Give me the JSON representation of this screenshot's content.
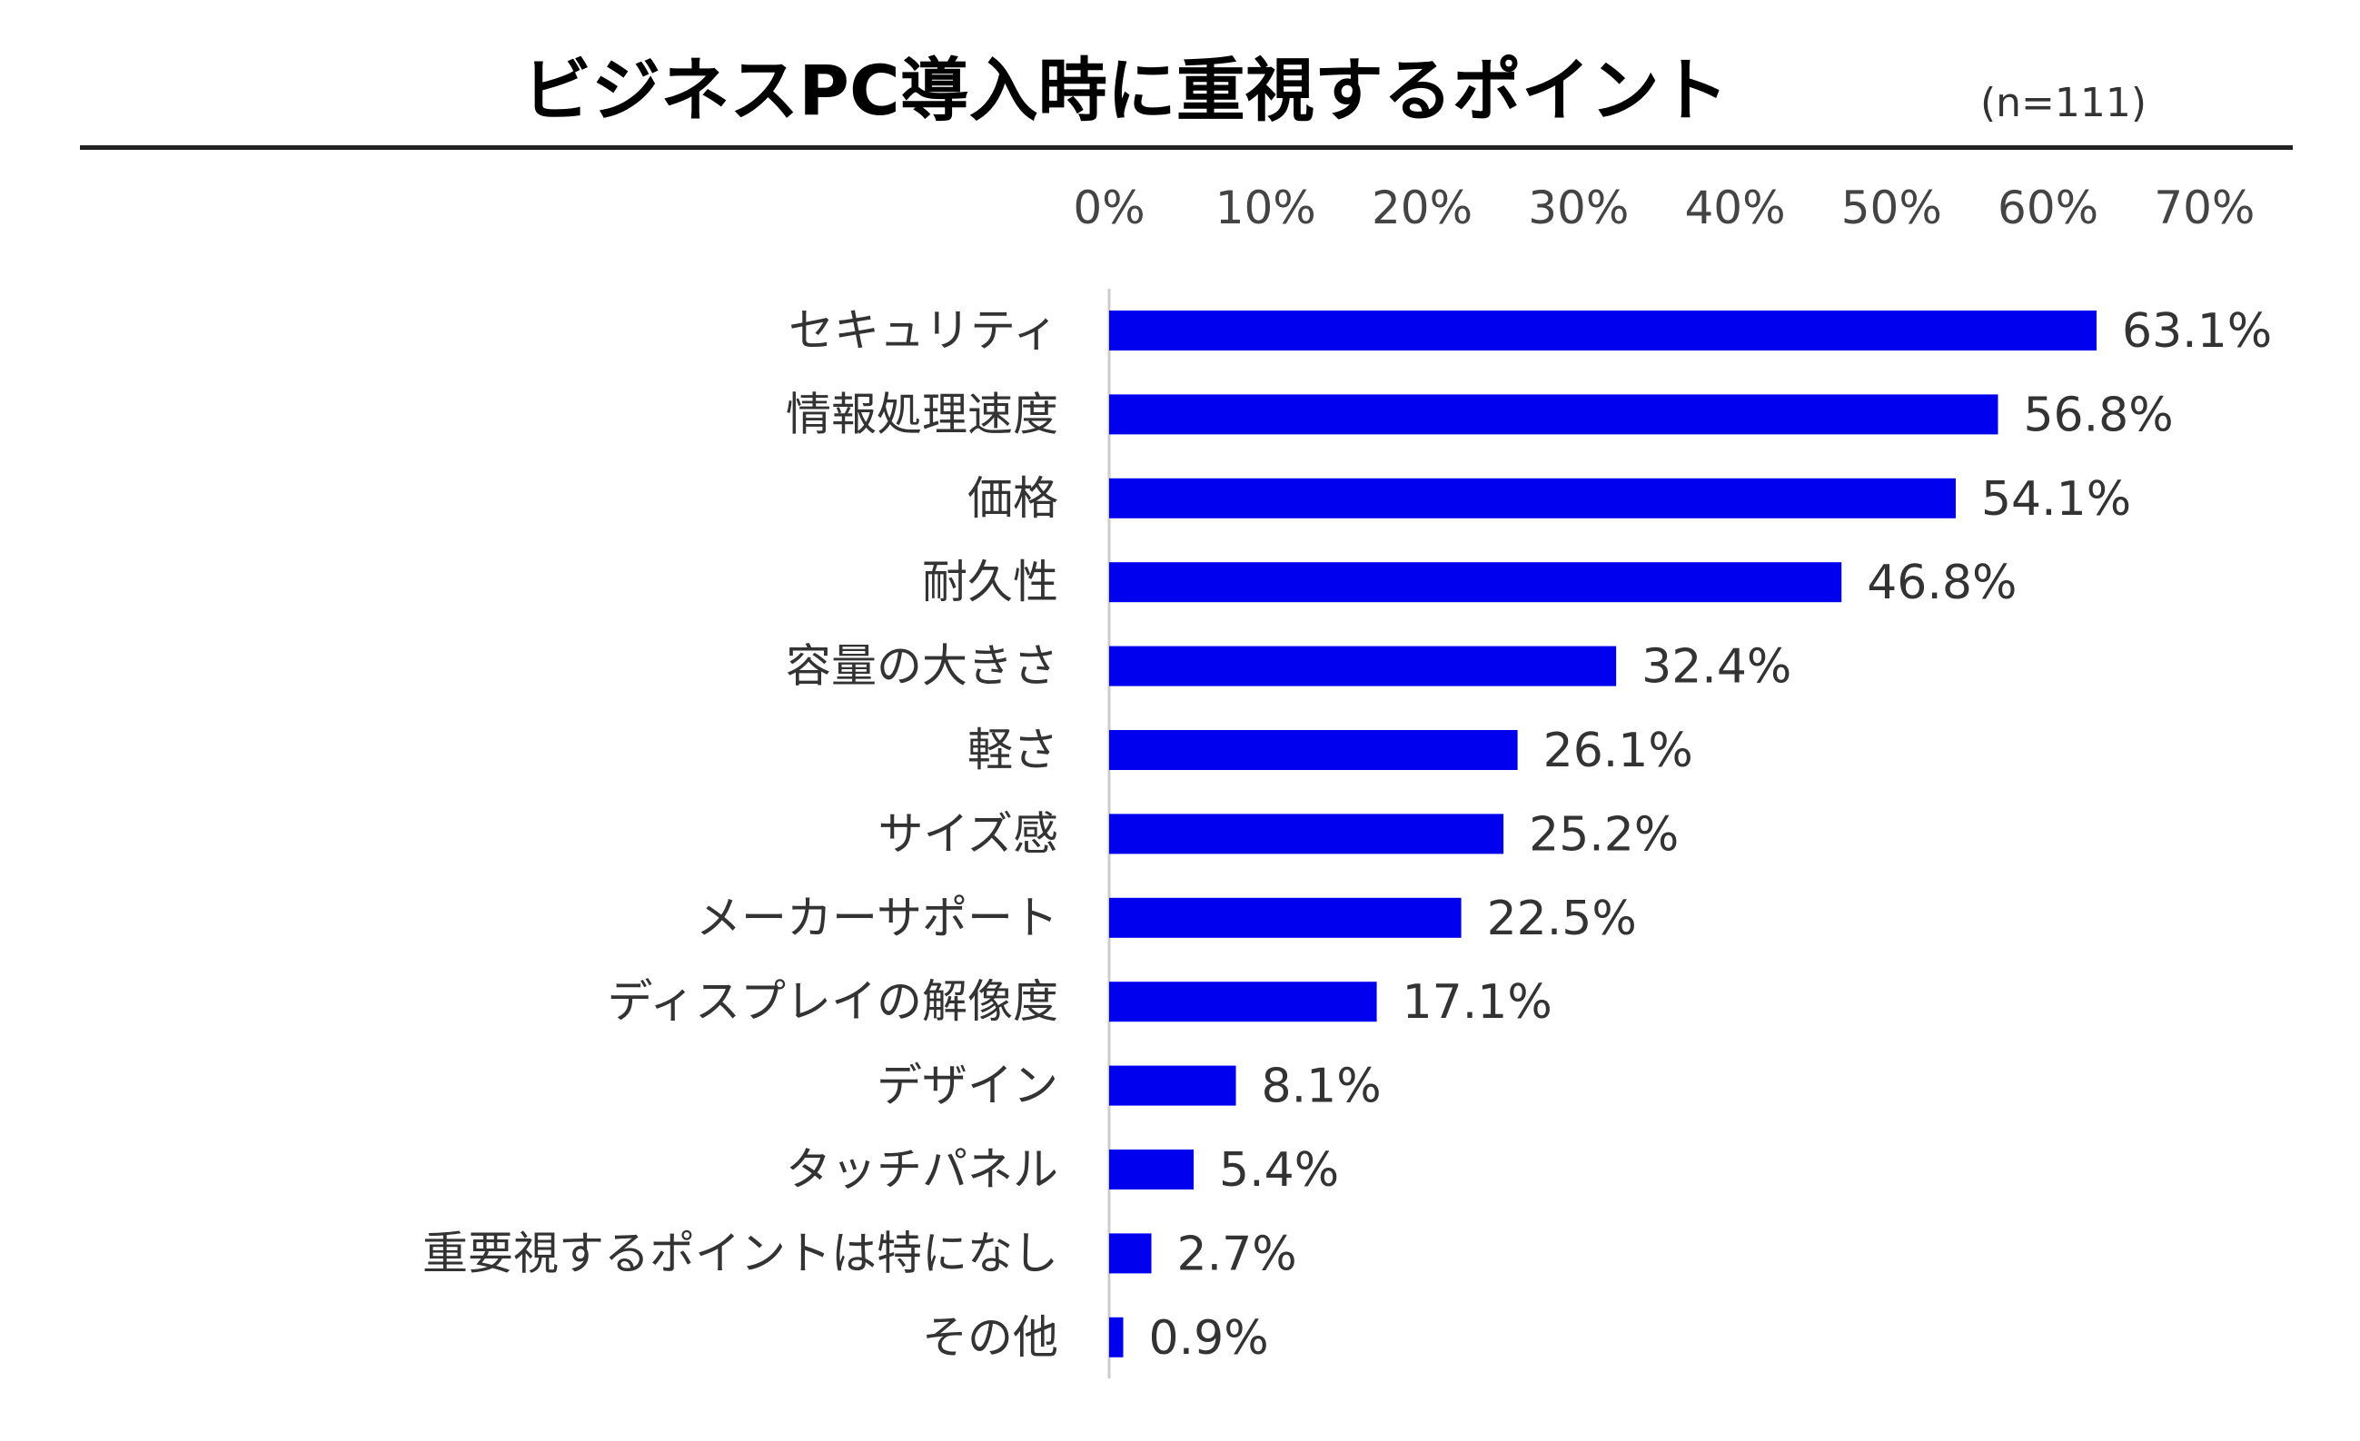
{
  "title": "ビジネスPC導入時に重視するポイント",
  "note": "(n=111)",
  "colors": {
    "bar": "#0000ee",
    "axis": "#cccccc"
  },
  "chart_data": {
    "type": "bar",
    "orientation": "horizontal",
    "title": "ビジネスPC導入時に重視するポイント",
    "xlim": [
      0,
      70
    ],
    "ticks": [
      "0%",
      "10%",
      "20%",
      "30%",
      "40%",
      "50%",
      "60%",
      "70%"
    ],
    "tick_values": [
      0,
      10,
      20,
      30,
      40,
      50,
      60,
      70
    ],
    "categories": [
      "セキュリティ",
      "情報処理速度",
      "価格",
      "耐久性",
      "容量の大きさ",
      "軽さ",
      "サイズ感",
      "メーカーサポート",
      "ディスプレイの解像度",
      "デザイン",
      "タッチパネル",
      "重要視するポイントは特になし",
      "その他"
    ],
    "values": [
      63.1,
      56.8,
      54.1,
      46.8,
      32.4,
      26.1,
      25.2,
      22.5,
      17.1,
      8.1,
      5.4,
      2.7,
      0.9
    ],
    "labels": [
      "63.1%",
      "56.8%",
      "54.1%",
      "46.8%",
      "32.4%",
      "26.1%",
      "25.2%",
      "22.5%",
      "17.1%",
      "8.1%",
      "5.4%",
      "2.7%",
      "0.9%"
    ],
    "grid": false,
    "legend": "none"
  }
}
